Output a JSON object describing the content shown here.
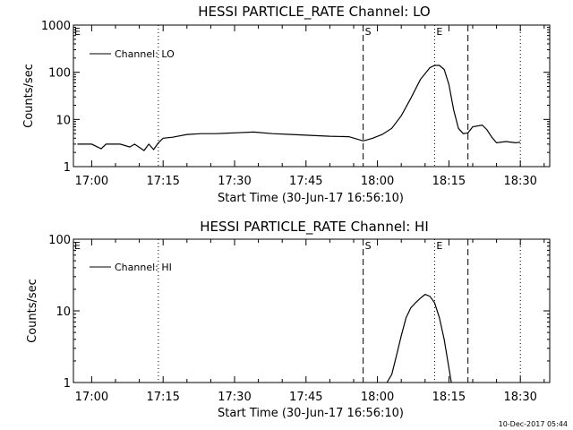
{
  "footer_timestamp": "10-Dec-2017 05:44",
  "chart_data": [
    {
      "type": "line",
      "title": "HESSI PARTICLE_RATE Channel: LO",
      "ylabel": "Counts/sec",
      "xlabel": "Start Time (30-Jun-17 16:56:10)",
      "yscale": "log",
      "ylim": [
        1,
        1000
      ],
      "ytick_labels": [
        "1",
        "10",
        "100",
        "1000"
      ],
      "xlim": [
        "16:56:10",
        "18:36:10"
      ],
      "xtick_labels": [
        "17:00",
        "17:15",
        "17:30",
        "17:45",
        "18:00",
        "18:15",
        "18:30"
      ],
      "legend": {
        "entries": [
          "Channel: LO"
        ],
        "position": "top-left"
      },
      "markers": [
        {
          "time": "17:14",
          "style": "dotted",
          "label": ""
        },
        {
          "time": "17:57",
          "style": "dashed",
          "label": "S"
        },
        {
          "time": "18:12",
          "style": "dotted",
          "label": "E"
        },
        {
          "time": "18:19",
          "style": "dashed",
          "label": ""
        },
        {
          "time": "18:30",
          "style": "dotted",
          "label": ""
        }
      ],
      "series": [
        {
          "name": "Channel: LO",
          "points": [
            [
              "16:57",
              3
            ],
            [
              "17:00",
              3
            ],
            [
              "17:02",
              2.4
            ],
            [
              "17:03",
              3
            ],
            [
              "17:06",
              3
            ],
            [
              "17:08",
              2.6
            ],
            [
              "17:09",
              3
            ],
            [
              "17:11",
              2.2
            ],
            [
              "17:12",
              3
            ],
            [
              "17:13",
              2.3
            ],
            [
              "17:14",
              3.2
            ],
            [
              "17:15",
              4
            ],
            [
              "17:17",
              4.2
            ],
            [
              "17:20",
              4.8
            ],
            [
              "17:23",
              5
            ],
            [
              "17:26",
              5
            ],
            [
              "17:30",
              5.2
            ],
            [
              "17:34",
              5.4
            ],
            [
              "17:38",
              5
            ],
            [
              "17:42",
              4.8
            ],
            [
              "17:46",
              4.6
            ],
            [
              "17:50",
              4.4
            ],
            [
              "17:54",
              4.3
            ],
            [
              "17:57",
              3.5
            ],
            [
              "17:59",
              4
            ],
            [
              "18:01",
              4.8
            ],
            [
              "18:03",
              6.5
            ],
            [
              "18:05",
              12
            ],
            [
              "18:07",
              28
            ],
            [
              "18:09",
              70
            ],
            [
              "18:11",
              125
            ],
            [
              "18:12",
              140
            ],
            [
              "18:13",
              140
            ],
            [
              "18:14",
              115
            ],
            [
              "18:15",
              55
            ],
            [
              "18:16",
              16
            ],
            [
              "18:17",
              6.5
            ],
            [
              "18:18",
              5
            ],
            [
              "18:19",
              5.2
            ],
            [
              "18:20",
              7
            ],
            [
              "18:22",
              7.6
            ],
            [
              "18:23",
              6
            ],
            [
              "18:24",
              4.2
            ],
            [
              "18:25",
              3.2
            ],
            [
              "18:27",
              3.4
            ],
            [
              "18:29",
              3.2
            ],
            [
              "18:30",
              3.3
            ]
          ]
        }
      ]
    },
    {
      "type": "line",
      "title": "HESSI PARTICLE_RATE Channel: HI",
      "ylabel": "Counts/sec",
      "xlabel": "Start Time (30-Jun-17 16:56:10)",
      "yscale": "log",
      "ylim": [
        1,
        100
      ],
      "ytick_labels": [
        "1",
        "10",
        "100"
      ],
      "xlim": [
        "16:56:10",
        "18:36:10"
      ],
      "xtick_labels": [
        "17:00",
        "17:15",
        "17:30",
        "17:45",
        "18:00",
        "18:15",
        "18:30"
      ],
      "legend": {
        "entries": [
          "Channel: HI"
        ],
        "position": "top-left"
      },
      "markers": [
        {
          "time": "17:14",
          "style": "dotted",
          "label": ""
        },
        {
          "time": "17:57",
          "style": "dashed",
          "label": "S"
        },
        {
          "time": "18:12",
          "style": "dotted",
          "label": "E"
        },
        {
          "time": "18:19",
          "style": "dashed",
          "label": ""
        },
        {
          "time": "18:30",
          "style": "dotted",
          "label": ""
        }
      ],
      "series": [
        {
          "name": "Channel: HI",
          "points": [
            [
              "18:02",
              1
            ],
            [
              "18:03",
              1.3
            ],
            [
              "18:04",
              2.4
            ],
            [
              "18:05",
              4.5
            ],
            [
              "18:06",
              8
            ],
            [
              "18:07",
              11
            ],
            [
              "18:08",
              13
            ],
            [
              "18:09",
              15
            ],
            [
              "18:10",
              17
            ],
            [
              "18:11",
              16
            ],
            [
              "18:12",
              13
            ],
            [
              "18:13",
              8
            ],
            [
              "18:14",
              4
            ],
            [
              "18:15",
              1.6
            ],
            [
              "18:15.5",
              1
            ]
          ]
        }
      ]
    }
  ]
}
